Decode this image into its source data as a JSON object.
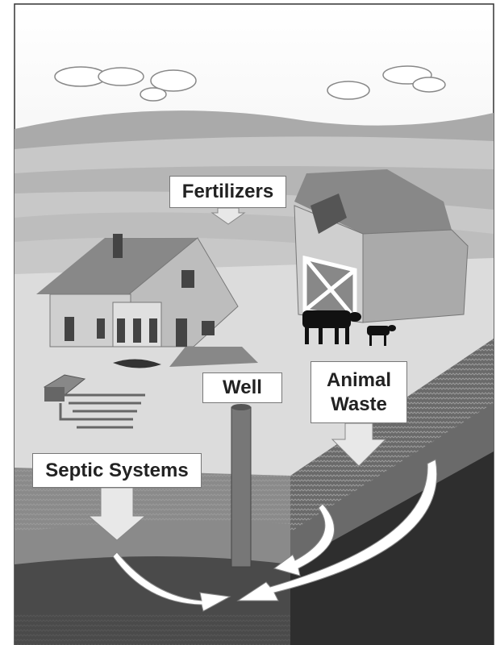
{
  "labels": {
    "fertilizers": "Fertilizers",
    "well": "Well",
    "animal_waste": "Animal Waste",
    "septic_systems": "Septic Systems"
  }
}
